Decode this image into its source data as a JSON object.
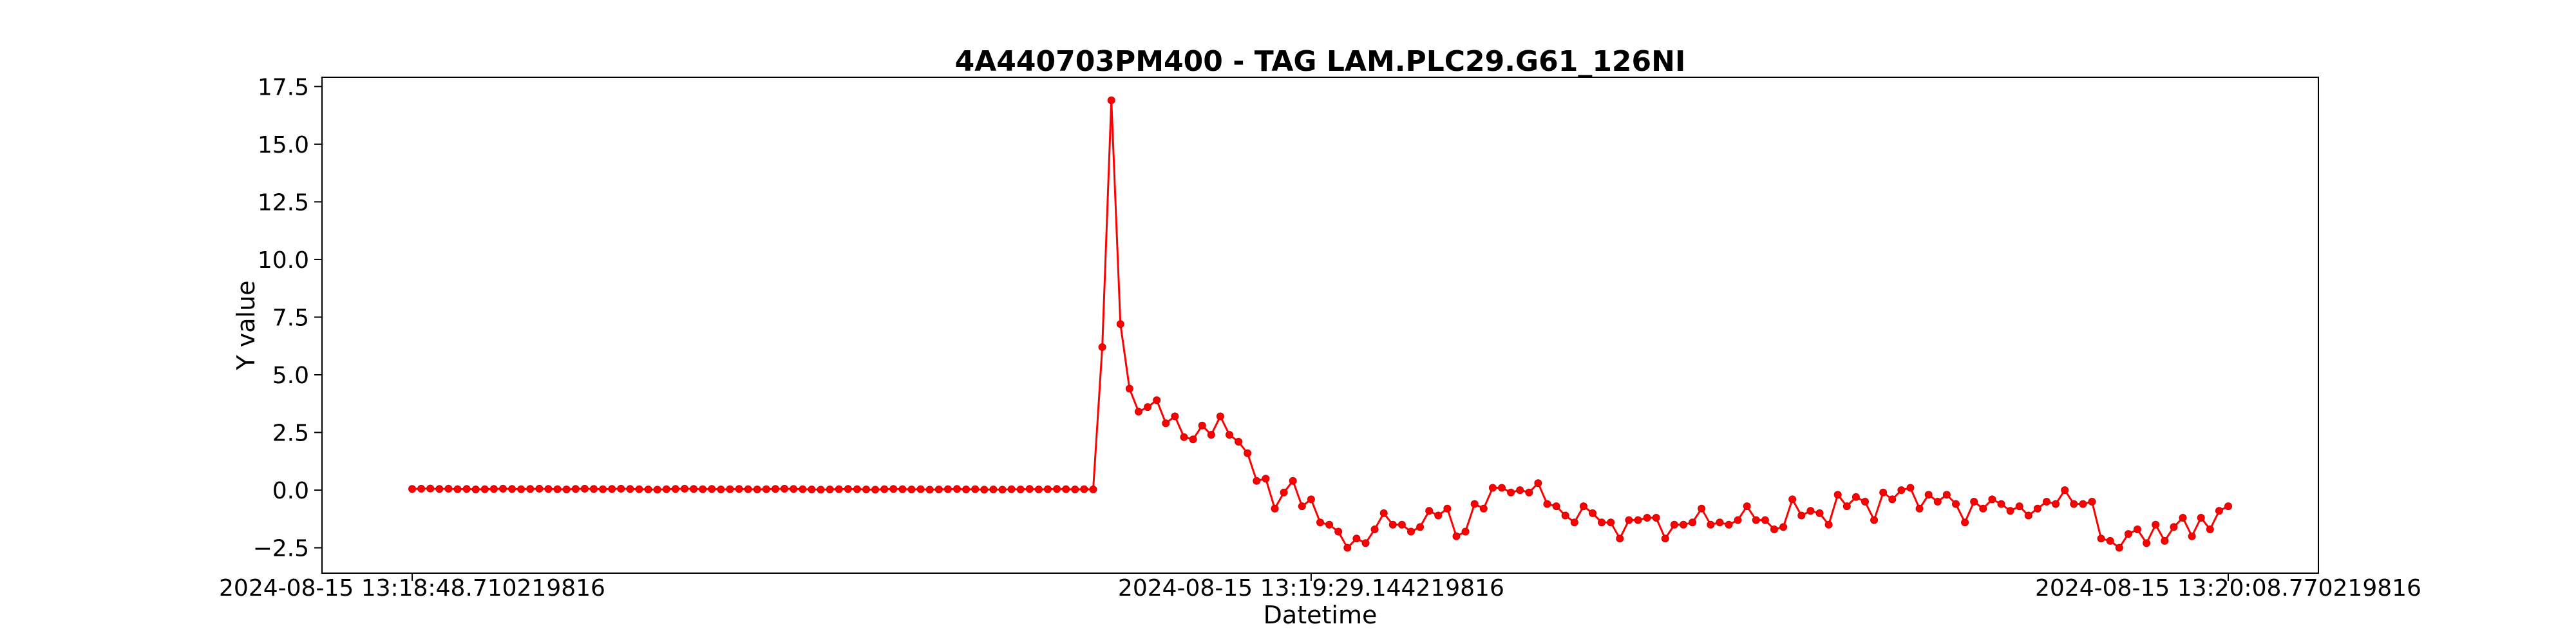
{
  "chart_data": {
    "type": "line",
    "title": "4A440703PM400 - TAG LAM.PLC29.G61_126NI",
    "xlabel": "Datetime",
    "ylabel": "Y value",
    "x_tick_labels": [
      "2024-08-15 13:18:48.710219816",
      "2024-08-15 13:19:29.144219816",
      "2024-08-15 13:20:08.770219816"
    ],
    "y_ticks": [
      -2.5,
      0.0,
      2.5,
      5.0,
      7.5,
      10.0,
      12.5,
      15.0,
      17.5
    ],
    "y_tick_labels": [
      "−2.5",
      "0.0",
      "2.5",
      "5.0",
      "7.5",
      "10.0",
      "12.5",
      "15.0",
      "17.5"
    ],
    "ylim": [
      -3.6,
      17.9
    ],
    "grid": false,
    "line_color": "#ff0000",
    "marker_color": "#cc0000",
    "series": [
      {
        "values": [
          0.05,
          0.06,
          0.07,
          0.05,
          0.06,
          0.04,
          0.05,
          0.03,
          0.04,
          0.05,
          0.06,
          0.05,
          0.04,
          0.05,
          0.06,
          0.05,
          0.04,
          0.03,
          0.05,
          0.06,
          0.05,
          0.04,
          0.05,
          0.06,
          0.05,
          0.04,
          0.03,
          0.02,
          0.04,
          0.05,
          0.06,
          0.05,
          0.04,
          0.05,
          0.03,
          0.04,
          0.05,
          0.04,
          0.03,
          0.04,
          0.05,
          0.06,
          0.05,
          0.04,
          0.03,
          0.02,
          0.03,
          0.04,
          0.05,
          0.04,
          0.03,
          0.02,
          0.04,
          0.05,
          0.04,
          0.03,
          0.04,
          0.02,
          0.03,
          0.04,
          0.05,
          0.03,
          0.04,
          0.02,
          0.03,
          0.02,
          0.04,
          0.03,
          0.05,
          0.03,
          0.04,
          0.05,
          0.04,
          0.03,
          0.04,
          0.03,
          6.2,
          16.9,
          7.2,
          4.4,
          3.4,
          3.6,
          3.9,
          2.9,
          3.2,
          2.3,
          2.2,
          2.8,
          2.4,
          3.2,
          2.4,
          2.1,
          1.6,
          0.4,
          0.5,
          -0.8,
          -0.1,
          0.4,
          -0.7,
          -0.4,
          -1.4,
          -1.5,
          -1.8,
          -2.5,
          -2.1,
          -2.3,
          -1.7,
          -1.0,
          -1.5,
          -1.5,
          -1.8,
          -1.6,
          -0.9,
          -1.1,
          -0.8,
          -2.0,
          -1.8,
          -0.6,
          -0.8,
          0.1,
          0.1,
          -0.1,
          0.0,
          -0.1,
          0.3,
          -0.6,
          -0.7,
          -1.1,
          -1.4,
          -0.7,
          -1.0,
          -1.4,
          -1.4,
          -2.1,
          -1.3,
          -1.3,
          -1.2,
          -1.2,
          -2.1,
          -1.5,
          -1.5,
          -1.4,
          -0.8,
          -1.5,
          -1.4,
          -1.5,
          -1.3,
          -0.7,
          -1.3,
          -1.3,
          -1.7,
          -1.6,
          -0.4,
          -1.1,
          -0.9,
          -1.0,
          -1.5,
          -0.2,
          -0.7,
          -0.3,
          -0.5,
          -1.3,
          -0.1,
          -0.4,
          0.0,
          0.1,
          -0.8,
          -0.2,
          -0.5,
          -0.2,
          -0.6,
          -1.4,
          -0.5,
          -0.8,
          -0.4,
          -0.6,
          -0.9,
          -0.7,
          -1.1,
          -0.8,
          -0.5,
          -0.6,
          0.0,
          -0.6,
          -0.6,
          -0.5,
          -2.1,
          -2.2,
          -2.5,
          -1.9,
          -1.7,
          -2.3,
          -1.5,
          -2.2,
          -1.6,
          -1.2,
          -2.0,
          -1.2,
          -1.7,
          -0.9,
          -0.7
        ]
      }
    ]
  }
}
